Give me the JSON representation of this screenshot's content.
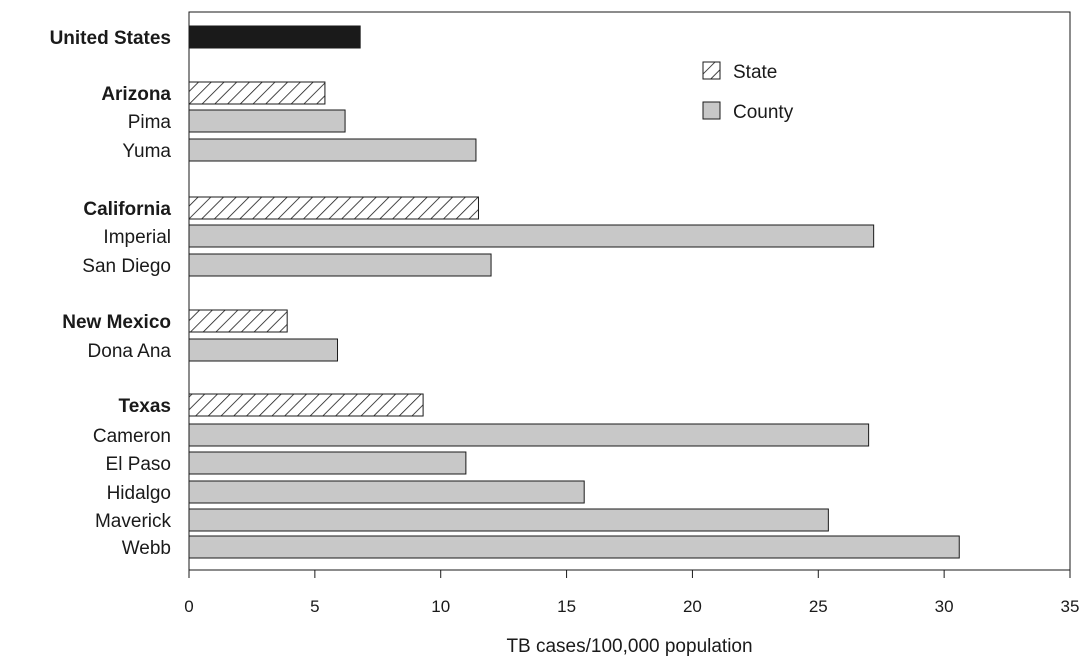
{
  "chart_data": {
    "type": "bar",
    "orientation": "horizontal",
    "xlabel": "TB cases/100,000 population",
    "ylabel": "",
    "xlim": [
      0,
      35
    ],
    "xticks": [
      "0",
      "5",
      "10",
      "15",
      "20",
      "25",
      "30",
      "35"
    ],
    "grid": false,
    "legend_position": "top-right",
    "legend": [
      {
        "key": "state",
        "label": "State"
      },
      {
        "key": "county",
        "label": "County"
      }
    ],
    "colors": {
      "national": "#1a1a1a",
      "state_hatch": "#1a1a1a",
      "county": "#c8c8c8"
    },
    "rows": [
      {
        "label": "United States",
        "value": 6.8,
        "kind": "national",
        "bold": true
      },
      {
        "label": "Arizona",
        "value": 5.4,
        "kind": "state",
        "bold": true
      },
      {
        "label": "Pima",
        "value": 6.2,
        "kind": "county",
        "bold": false
      },
      {
        "label": "Yuma",
        "value": 11.4,
        "kind": "county",
        "bold": false
      },
      {
        "label": "California",
        "value": 11.5,
        "kind": "state",
        "bold": true
      },
      {
        "label": "Imperial",
        "value": 27.2,
        "kind": "county",
        "bold": false
      },
      {
        "label": "San Diego",
        "value": 12.0,
        "kind": "county",
        "bold": false
      },
      {
        "label": "New Mexico",
        "value": 3.9,
        "kind": "state",
        "bold": true
      },
      {
        "label": "Dona Ana",
        "value": 5.9,
        "kind": "county",
        "bold": false
      },
      {
        "label": "Texas",
        "value": 9.3,
        "kind": "state",
        "bold": true
      },
      {
        "label": "Cameron",
        "value": 27.0,
        "kind": "county",
        "bold": false
      },
      {
        "label": "El Paso",
        "value": 11.0,
        "kind": "county",
        "bold": false
      },
      {
        "label": "Hidalgo",
        "value": 15.7,
        "kind": "county",
        "bold": false
      },
      {
        "label": "Maverick",
        "value": 25.4,
        "kind": "county",
        "bold": false
      },
      {
        "label": "Webb",
        "value": 30.6,
        "kind": "county",
        "bold": false
      }
    ]
  }
}
